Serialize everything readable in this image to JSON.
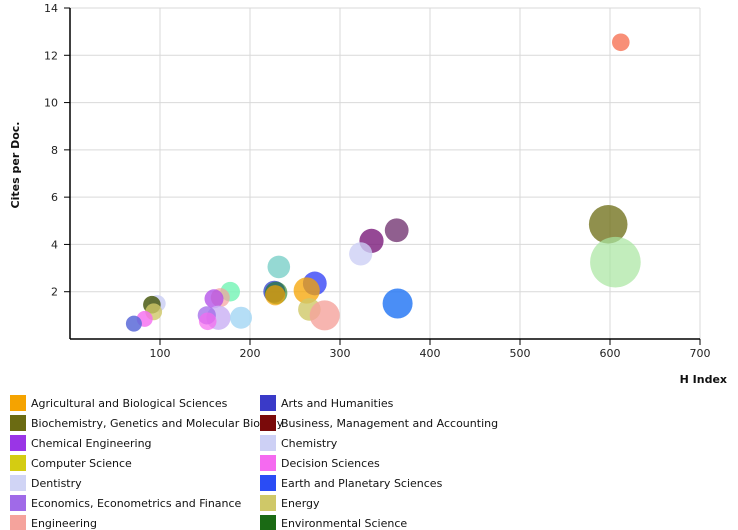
{
  "chart_data": {
    "type": "scatter",
    "xlabel": "H Index",
    "ylabel": "Cites per Doc.",
    "xlim": [
      0,
      700
    ],
    "ylim": [
      0,
      14
    ],
    "xticks": [
      "100",
      "200",
      "300",
      "400",
      "500",
      "600",
      "700"
    ],
    "yticks": [
      "2",
      "4",
      "6",
      "8",
      "10",
      "12",
      "14"
    ],
    "grid": true,
    "legend_position": "bottom",
    "legend": [
      {
        "label": "Agricultural and Biological Sciences",
        "color": "#f5a300"
      },
      {
        "label": "Arts and Humanities",
        "color": "#3a3ac8"
      },
      {
        "label": "Biochemistry, Genetics and Molecular Biology",
        "color": "#6b6b12"
      },
      {
        "label": "Business, Management and Accounting",
        "color": "#7a0a0a"
      },
      {
        "label": "Chemical Engineering",
        "color": "#9a35e6"
      },
      {
        "label": "Chemistry",
        "color": "#cdd0f5"
      },
      {
        "label": "Computer Science",
        "color": "#d4cc12"
      },
      {
        "label": "Decision Sciences",
        "color": "#f56af0"
      },
      {
        "label": "Dentistry",
        "color": "#d0d4f5"
      },
      {
        "label": "Earth and Planetary Sciences",
        "color": "#2a4cf5"
      },
      {
        "label": "Economics, Econometrics and Finance",
        "color": "#a06ae8"
      },
      {
        "label": "Energy",
        "color": "#cfc868"
      },
      {
        "label": "Engineering",
        "color": "#f5a39c"
      },
      {
        "label": "Environmental Science",
        "color": "#1a6a14"
      }
    ],
    "points": [
      {
        "x": 612,
        "y": 12.55,
        "size": 1.2,
        "color": "#f56a4a",
        "alpha": 0.75
      },
      {
        "x": 598,
        "y": 4.85,
        "size": 5.8,
        "color": "#6b6b12",
        "alpha": 0.75
      },
      {
        "x": 606,
        "y": 3.25,
        "size": 10.0,
        "color": "#a8e6a0",
        "alpha": 0.7
      },
      {
        "x": 363,
        "y": 4.6,
        "size": 2.2,
        "color": "#6b2a6a",
        "alpha": 0.75
      },
      {
        "x": 335,
        "y": 4.15,
        "size": 2.3,
        "color": "#7a1a7a",
        "alpha": 0.8
      },
      {
        "x": 323,
        "y": 3.6,
        "size": 2.1,
        "color": "#cdd0f5",
        "alpha": 0.8
      },
      {
        "x": 364,
        "y": 1.5,
        "size": 3.5,
        "color": "#2a7af5",
        "alpha": 0.85
      },
      {
        "x": 232,
        "y": 3.05,
        "size": 2.0,
        "color": "#7ad0c8",
        "alpha": 0.8
      },
      {
        "x": 272,
        "y": 2.35,
        "size": 2.2,
        "color": "#2a3af5",
        "alpha": 0.75
      },
      {
        "x": 263,
        "y": 2.05,
        "size": 2.7,
        "color": "#f5a300",
        "alpha": 0.75
      },
      {
        "x": 227,
        "y": 2.0,
        "size": 1.9,
        "color": "#3a4ad0",
        "alpha": 0.8
      },
      {
        "x": 229,
        "y": 1.95,
        "size": 2.0,
        "color": "#1a7a1a",
        "alpha": 0.6
      },
      {
        "x": 228,
        "y": 1.85,
        "size": 1.6,
        "color": "#f5a300",
        "alpha": 0.7
      },
      {
        "x": 266,
        "y": 1.25,
        "size": 2.0,
        "color": "#cfc868",
        "alpha": 0.8
      },
      {
        "x": 283,
        "y": 1.0,
        "size": 3.5,
        "color": "#f5a39c",
        "alpha": 0.8
      },
      {
        "x": 178,
        "y": 2.0,
        "size": 1.5,
        "color": "#7af5b8",
        "alpha": 0.85
      },
      {
        "x": 167,
        "y": 1.75,
        "size": 1.4,
        "color": "#f5a39c",
        "alpha": 0.7
      },
      {
        "x": 160,
        "y": 1.7,
        "size": 1.4,
        "color": "#b04ae8",
        "alpha": 0.75
      },
      {
        "x": 165,
        "y": 0.9,
        "size": 2.3,
        "color": "#cdb4f5",
        "alpha": 0.85
      },
      {
        "x": 190,
        "y": 0.9,
        "size": 1.9,
        "color": "#a8d8f5",
        "alpha": 0.85
      },
      {
        "x": 152,
        "y": 1.0,
        "size": 1.3,
        "color": "#a06ae8",
        "alpha": 0.75
      },
      {
        "x": 153,
        "y": 0.75,
        "size": 1.2,
        "color": "#f56af0",
        "alpha": 0.7
      },
      {
        "x": 97,
        "y": 1.5,
        "size": 1.1,
        "color": "#cdd0f5",
        "alpha": 0.85
      },
      {
        "x": 91,
        "y": 1.45,
        "size": 1.2,
        "color": "#4a5a12",
        "alpha": 0.85
      },
      {
        "x": 93,
        "y": 1.15,
        "size": 1.1,
        "color": "#cfc868",
        "alpha": 0.8
      },
      {
        "x": 83,
        "y": 0.85,
        "size": 1.0,
        "color": "#f56af0",
        "alpha": 0.8
      },
      {
        "x": 71,
        "y": 0.65,
        "size": 1.0,
        "color": "#5a6ad8",
        "alpha": 0.85
      }
    ]
  }
}
